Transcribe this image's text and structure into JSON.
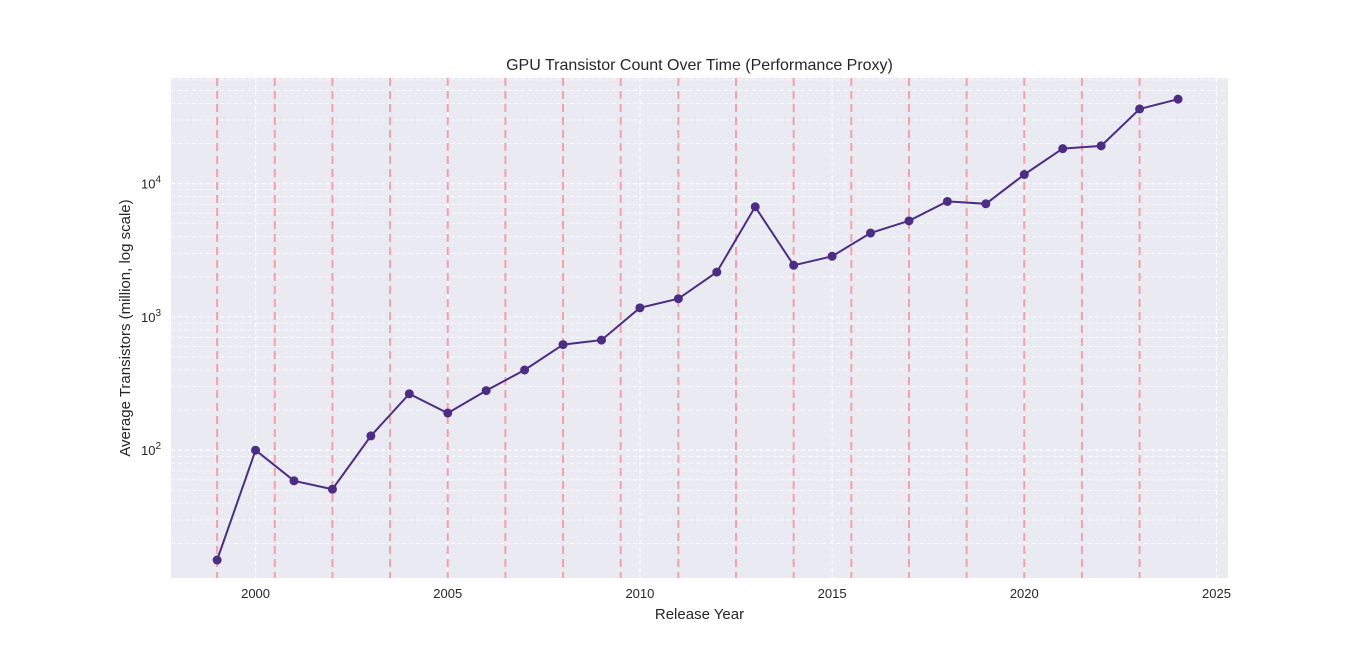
{
  "chart_data": {
    "type": "line",
    "title": "GPU Transistor Count Over Time (Performance Proxy)",
    "xlabel": "Release Year",
    "ylabel": "Average Transistors (million, log scale)",
    "x_scale": "linear",
    "y_scale": "log",
    "xlim": [
      1997.8,
      2025.3
    ],
    "ylim": [
      11,
      62000
    ],
    "x_ticks": [
      2000,
      2005,
      2010,
      2015,
      2020,
      2025
    ],
    "y_ticks": [
      {
        "value": 100,
        "base": "10",
        "exp": "2"
      },
      {
        "value": 1000,
        "base": "10",
        "exp": "3"
      },
      {
        "value": 10000,
        "base": "10",
        "exp": "4"
      }
    ],
    "grid": true,
    "legend": "none",
    "background_color": "#eaeaf2",
    "line_color": "#4b2e83",
    "marker_color": "#4b2e83",
    "vline_color": "#f4a0a8",
    "reference_lines_x": [
      1999,
      2000.5,
      2002,
      2003.5,
      2005,
      2006.5,
      2008,
      2009.5,
      2011,
      2012.5,
      2014,
      2015.5,
      2017,
      2018.5,
      2020,
      2021.5,
      2023
    ],
    "series": [
      {
        "x": [
          1999,
          2000,
          2001,
          2002,
          2003,
          2004,
          2005,
          2006,
          2007,
          2008,
          2009,
          2010,
          2011,
          2012,
          2013,
          2014,
          2015,
          2016,
          2017,
          2018,
          2019,
          2020,
          2021,
          2022,
          2023,
          2024
        ],
        "y": [
          15,
          100,
          59,
          51,
          128,
          265,
          190,
          280,
          400,
          620,
          670,
          1170,
          1370,
          2170,
          6700,
          2440,
          2850,
          4260,
          5260,
          7350,
          7060,
          11700,
          18300,
          19200,
          36300,
          43000
        ]
      }
    ]
  }
}
